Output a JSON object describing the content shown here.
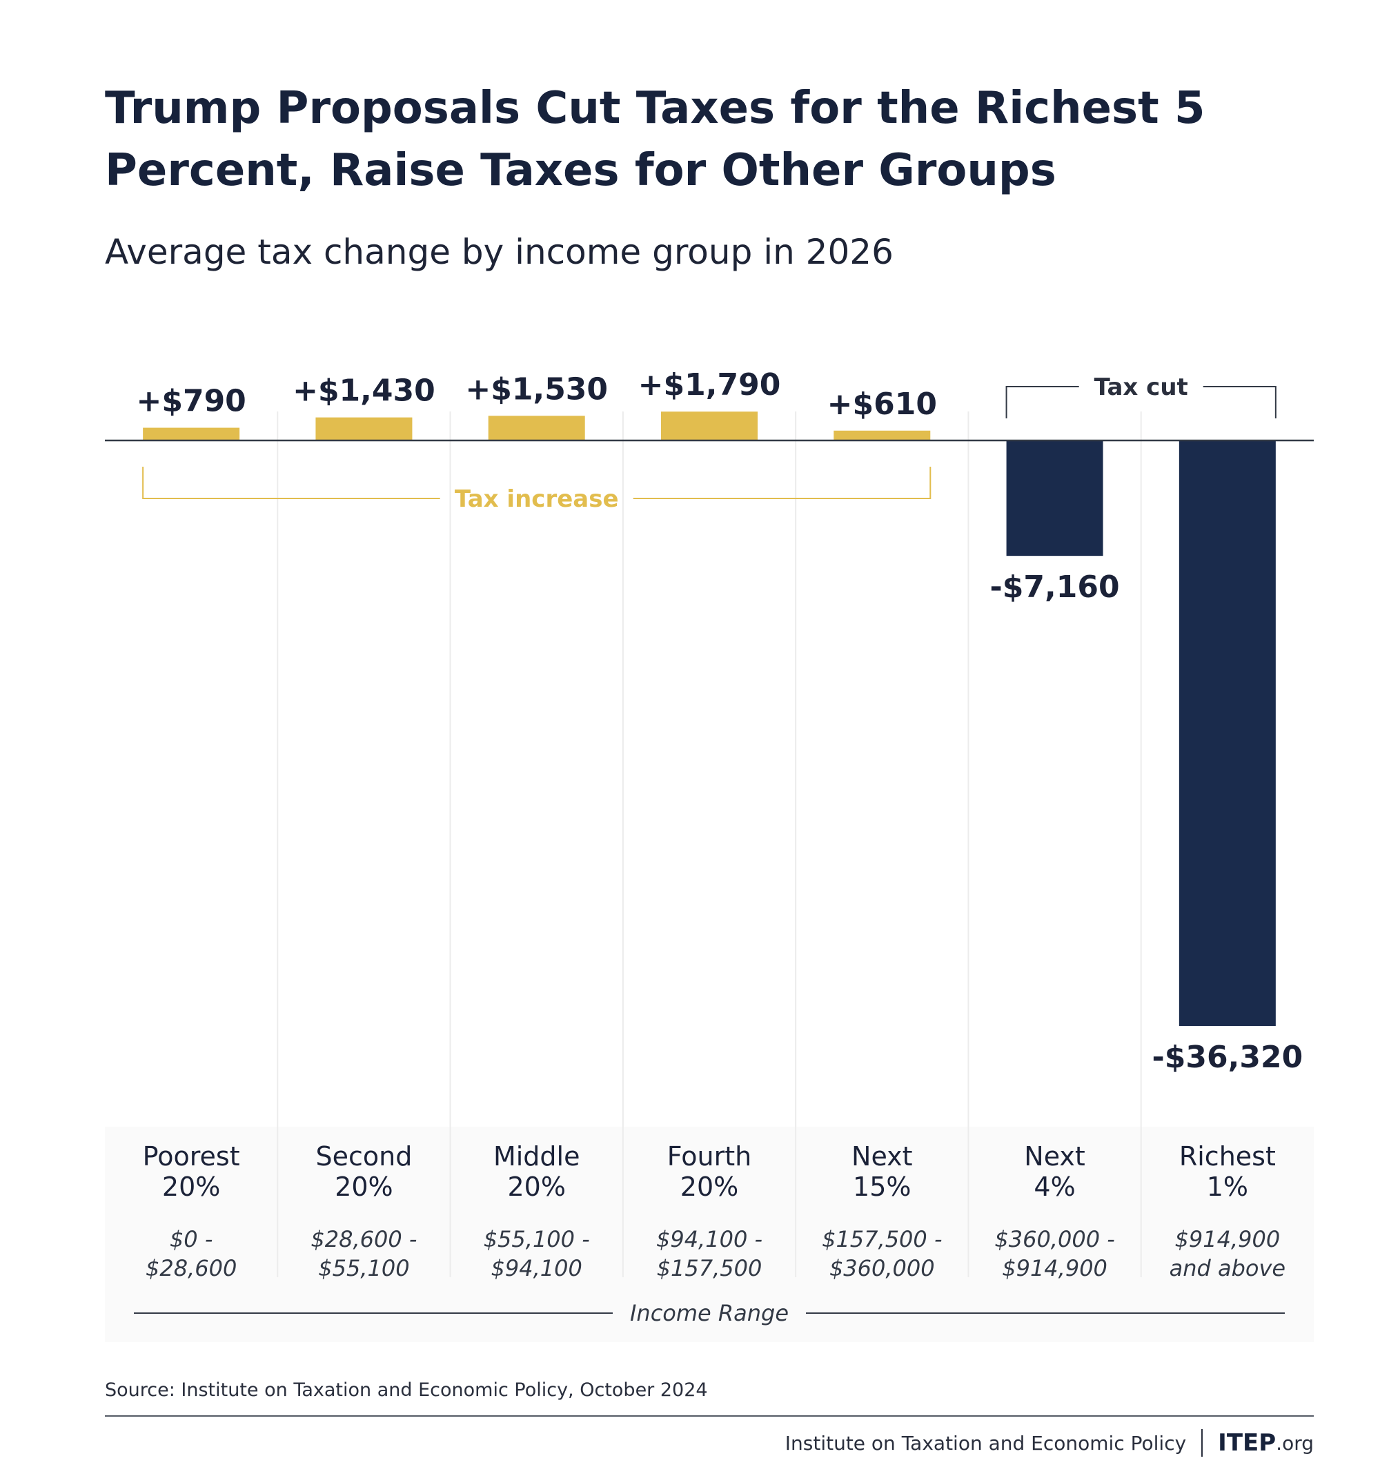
{
  "title": "Trump Proposals Cut Taxes for the Richest 5 Percent, Raise Taxes for Other Groups",
  "subtitle": "Average tax change by income group in 2026",
  "colors": {
    "increase": "#e2bd4e",
    "cut": "#1a2b4c",
    "text": "#1b2238",
    "bracket_increase": "#e2bd4e",
    "bracket_cut": "#333a46"
  },
  "chart_data": {
    "type": "bar",
    "categories": [
      "Poorest 20%",
      "Second 20%",
      "Middle 20%",
      "Fourth 20%",
      "Next 15%",
      "Next 4%",
      "Richest 1%"
    ],
    "category_lines": [
      [
        "Poorest",
        "20%"
      ],
      [
        "Second",
        "20%"
      ],
      [
        "Middle",
        "20%"
      ],
      [
        "Fourth",
        "20%"
      ],
      [
        "Next",
        "15%"
      ],
      [
        "Next",
        "4%"
      ],
      [
        "Richest",
        "1%"
      ]
    ],
    "income_ranges": [
      [
        "$0 -",
        "$28,600"
      ],
      [
        "$28,600 -",
        "$55,100"
      ],
      [
        "$55,100 -",
        "$94,100"
      ],
      [
        "$94,100 -",
        "$157,500"
      ],
      [
        "$157,500 -",
        "$360,000"
      ],
      [
        "$360,000 -",
        "$914,900"
      ],
      [
        "$914,900",
        "and above"
      ]
    ],
    "values": [
      790,
      1430,
      1530,
      1790,
      610,
      -7160,
      -36320
    ],
    "value_labels": [
      "+$790",
      "+$1,430",
      "+$1,530",
      "+$1,790",
      "+$610",
      "-$7,160",
      "-$36,320"
    ],
    "annotations": {
      "increase": "Tax increase",
      "cut": "Tax cut"
    },
    "axis_label": "Income Range",
    "xlabel": "Income Range",
    "ylabel": "",
    "grid": false
  },
  "source": "Source: Institute on Taxation and Economic Policy, October 2024",
  "footer": {
    "org": "Institute on Taxation and Economic Policy",
    "logo": "ITEP",
    "logo_suffix": ".org"
  }
}
